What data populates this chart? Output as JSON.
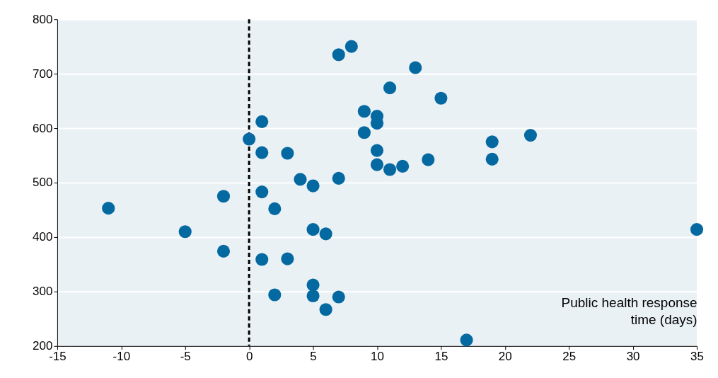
{
  "chart_data": {
    "type": "scatter",
    "xlabel": "Public health response time (days)",
    "x": [
      -11,
      -5,
      -2,
      -2,
      0,
      1,
      1,
      1,
      1,
      2,
      2,
      3,
      3,
      4,
      5,
      5,
      6,
      5,
      5,
      6,
      7,
      7,
      7,
      8,
      9,
      9,
      10,
      10,
      10,
      10,
      11,
      11,
      12,
      13,
      14,
      15,
      19,
      19,
      22,
      35,
      17
    ],
    "series": [
      {
        "color": "#0569a1",
        "values": [
          453,
          410,
          475,
          374,
          580,
          612,
          555,
          483,
          359,
          452,
          294,
          554,
          360,
          506,
          494,
          414,
          406,
          312,
          292,
          267,
          508,
          290,
          735,
          750,
          631,
          592,
          622,
          609,
          559,
          533,
          674,
          524,
          530,
          711,
          542,
          655,
          575,
          543,
          587,
          414,
          211
        ]
      }
    ],
    "xlim": [
      -15,
      35
    ],
    "xticks": [
      -15,
      -10,
      -5,
      0,
      5,
      10,
      15,
      20,
      25,
      30,
      35
    ],
    "ylim": [
      200,
      800
    ],
    "yticks": [
      200,
      300,
      400,
      500,
      600,
      700,
      800
    ],
    "grid": "y",
    "marker": "circle",
    "ref_lines": [
      {
        "axis": "x",
        "value": 0,
        "color": "#000000",
        "line_style": "dashed"
      }
    ]
  }
}
